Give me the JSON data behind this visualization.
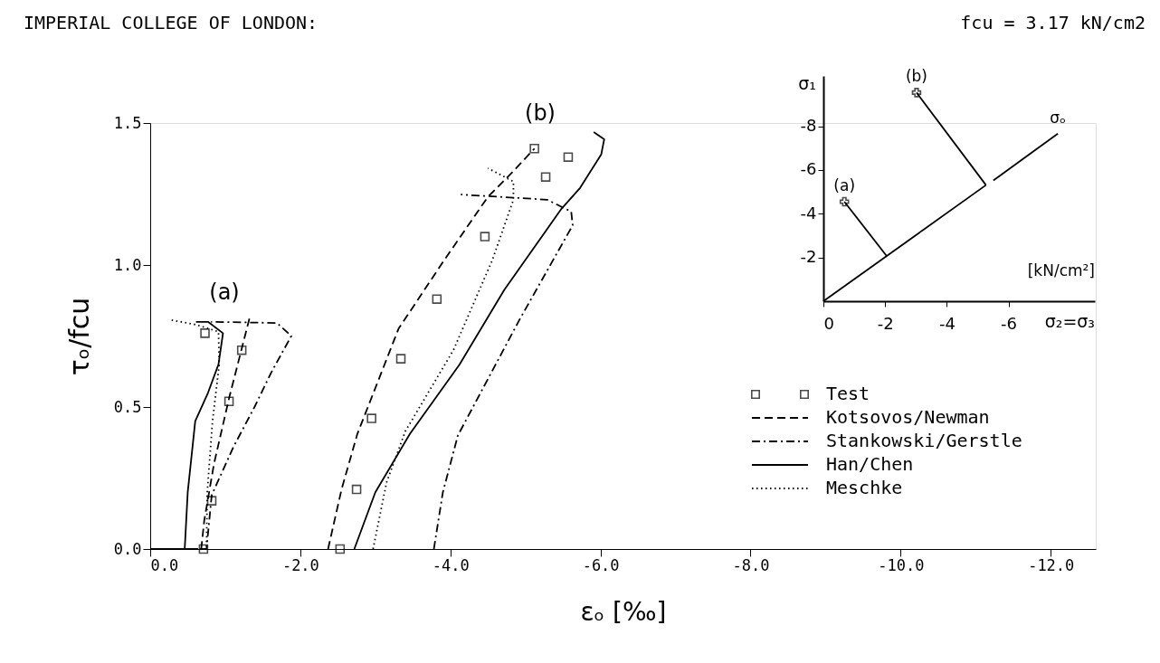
{
  "chart_data": [
    {
      "type": "line",
      "title": "IMPERIAL COLLEGE OF LONDON:",
      "subtitle": "fcu = 3.17 kN/cm2",
      "xlabel": "εₒ [‰]",
      "ylabel": "τₒ/fcu",
      "xlim": [
        0,
        -12.6
      ],
      "ylim": [
        0,
        1.5
      ],
      "xticks": [
        {
          "value": 0,
          "label": "0.0"
        },
        {
          "value": -2,
          "label": "-2.0"
        },
        {
          "value": -4,
          "label": "-4.0"
        },
        {
          "value": -6,
          "label": "-6.0"
        },
        {
          "value": -8,
          "label": "-8.0"
        },
        {
          "value": -10,
          "label": "-10.0"
        },
        {
          "value": -12,
          "label": "-12.0"
        }
      ],
      "yticks": [
        {
          "value": 0,
          "label": "0.0"
        },
        {
          "value": 0.5,
          "label": "0.5"
        },
        {
          "value": 1.0,
          "label": "1.0"
        },
        {
          "value": 1.5,
          "label": "1.5"
        }
      ],
      "legend": "right",
      "annotations": [
        "(a)",
        "(b)"
      ],
      "series": [
        {
          "name": "Test",
          "type": "scatter",
          "marker": "square",
          "color": "#000000",
          "x": [
            -0.71,
            -0.82,
            -1.05,
            -1.22,
            -0.73,
            -2.53,
            -2.75,
            -2.95,
            -3.34,
            -3.82,
            -4.46,
            -5.12,
            -5.27,
            -5.57
          ],
          "values": [
            0,
            0.17,
            0.52,
            0.7,
            0.76,
            0,
            0.21,
            0.46,
            0.67,
            0.88,
            1.1,
            1.41,
            1.31,
            1.38
          ]
        },
        {
          "name": "Kotsovos/Newman",
          "line_style": "dashed",
          "color": "#000000",
          "x": [
            0,
            -0.68,
            -0.72,
            -0.85,
            -1.05,
            -1.33,
            null,
            -2.37,
            -2.55,
            -2.76,
            -3.31,
            -3.92,
            -4.5,
            -4.82,
            -5.12
          ],
          "values": [
            0,
            0,
            0.1,
            0.3,
            0.53,
            0.82,
            null,
            0,
            0.21,
            0.405,
            0.776,
            1.018,
            1.24,
            1.325,
            1.41
          ]
        },
        {
          "name": "Stankowski/Gerstle",
          "line_style": "dashdot",
          "color": "#000000",
          "x": [
            0,
            -0.75,
            -0.82,
            -1.11,
            -1.39,
            -1.61,
            -1.88,
            -1.69,
            -0.81,
            null,
            -3.78,
            -3.9,
            -4.1,
            -4.92,
            -5.53,
            -5.63,
            -5.61,
            -5.29,
            -4.14
          ],
          "values": [
            0,
            0,
            0.19,
            0.36,
            0.5,
            0.62,
            0.75,
            0.796,
            0.8,
            null,
            0,
            0.2,
            0.4,
            0.807,
            1.093,
            1.14,
            1.188,
            1.23,
            1.248
          ]
        },
        {
          "name": "Han/Chen",
          "line_style": "solid",
          "color": "#000000",
          "x": [
            0,
            -0.46,
            -0.5,
            -0.6,
            -0.77,
            -0.91,
            -0.97,
            -0.77,
            -0.61,
            null,
            -2.72,
            -3.0,
            -3.46,
            -4.12,
            -4.72,
            -5.48,
            -5.73,
            -6.01,
            -6.05,
            -5.91
          ],
          "values": [
            0,
            0,
            0.2,
            0.45,
            0.55,
            0.65,
            0.76,
            0.8,
            0.8,
            null,
            0,
            0.2,
            0.405,
            0.649,
            0.913,
            1.198,
            1.272,
            1.389,
            1.443,
            1.468
          ]
        },
        {
          "name": "Meschke",
          "line_style": "dotted",
          "color": "#000000",
          "x": [
            0,
            -0.75,
            -0.76,
            -0.83,
            -0.92,
            -0.91,
            -0.61,
            -0.27,
            null,
            -2.97,
            -3.15,
            -3.4,
            -4.04,
            -4.56,
            -4.84,
            -4.84,
            -4.5
          ],
          "values": [
            0,
            0,
            0.2,
            0.45,
            0.65,
            0.765,
            0.79,
            0.807,
            null,
            0,
            0.235,
            0.415,
            0.7,
            1.018,
            1.23,
            1.294,
            1.341
          ]
        }
      ]
    },
    {
      "type": "line",
      "xlabel": "σ₂=σ₃",
      "ylabel": "σ₁",
      "xlim": [
        0,
        -8.8
      ],
      "ylim": [
        0,
        -10.3
      ],
      "xticks": [
        0,
        -2,
        -4,
        -6
      ],
      "yticks": [
        -2,
        -4,
        -6,
        -8
      ],
      "annotations": [
        "[kN/cm²]"
      ],
      "series": [
        {
          "name": "σₒ",
          "line_style": "solid",
          "color": "#000000",
          "x": [
            0,
            -5.27,
            null,
            -5.51,
            -7.6
          ],
          "values": [
            0,
            -5.31,
            null,
            -5.52,
            -7.66
          ]
        },
        {
          "name": "(a)",
          "line_style": "solid",
          "color": "#000000",
          "x": [
            -2.05,
            -0.68
          ],
          "values": [
            -2.07,
            -4.55
          ]
        },
        {
          "name": "(b)",
          "line_style": "solid",
          "color": "#000000",
          "x": [
            -5.27,
            -3.02
          ],
          "values": [
            -5.31,
            -9.54
          ]
        },
        {
          "type": "scatter",
          "marker": "cross",
          "color": "#000000",
          "x": [
            -0.68,
            -3.02
          ],
          "values": [
            -4.55,
            -9.54
          ]
        }
      ]
    }
  ]
}
